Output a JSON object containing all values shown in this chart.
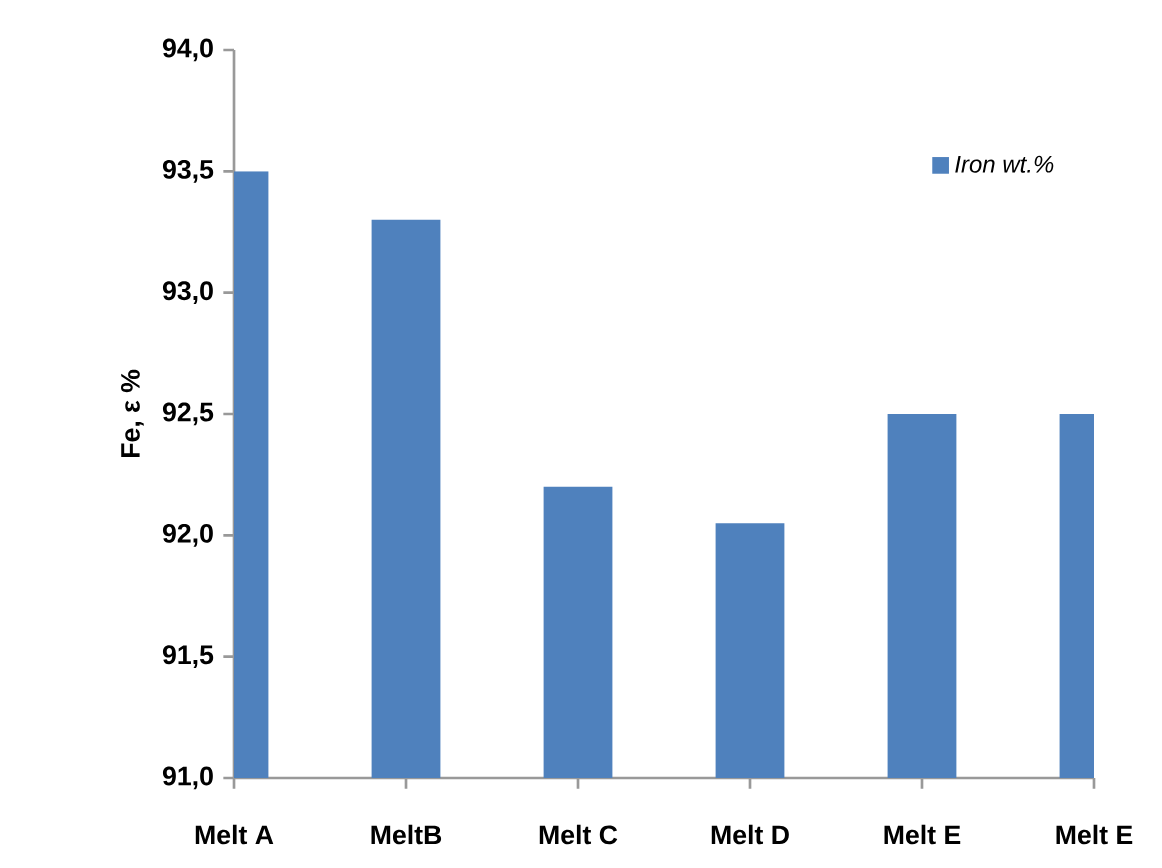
{
  "chart_data": {
    "type": "bar",
    "ylabel": "Fe, ε %",
    "categories": [
      "Melt A",
      "MeltB",
      "Melt C",
      "Melt D",
      "Melt E",
      "Melt E"
    ],
    "series": [
      {
        "name": "*Iron wt.%*",
        "color": "#4f81bd",
        "values": [
          93.5,
          93.3,
          92.2,
          92.05,
          92.5,
          92.5
        ]
      }
    ],
    "ylim": [
      91.0,
      94.0
    ],
    "yticks": [
      {
        "value": 91.0,
        "label": "91,0"
      },
      {
        "value": 91.5,
        "label": "91,5"
      },
      {
        "value": 92.0,
        "label": "92,0"
      },
      {
        "value": 92.5,
        "label": "92,5"
      },
      {
        "value": 93.0,
        "label": "93,0"
      },
      {
        "value": 93.5,
        "label": "93,5"
      },
      {
        "value": 94.0,
        "label": "94,0"
      }
    ],
    "grid": false,
    "legend": "top right"
  }
}
